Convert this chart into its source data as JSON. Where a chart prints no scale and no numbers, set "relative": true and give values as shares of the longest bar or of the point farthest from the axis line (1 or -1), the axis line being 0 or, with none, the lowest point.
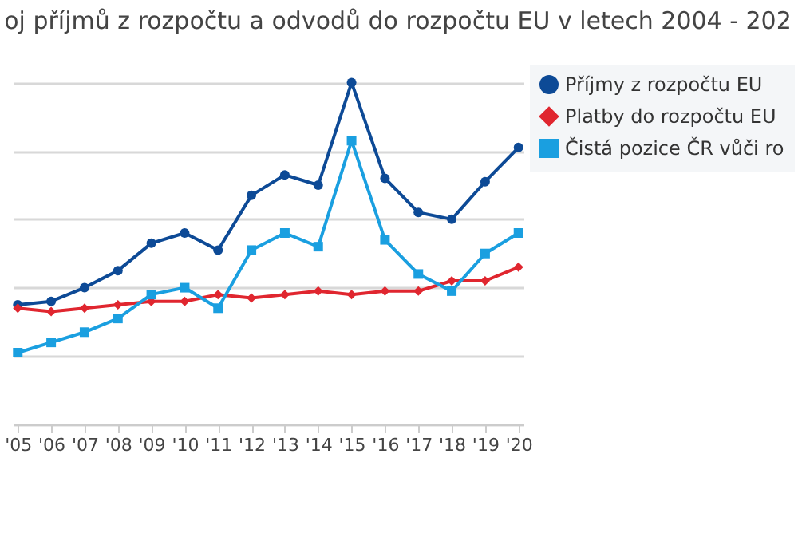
{
  "chart_data": {
    "type": "line",
    "title": "oj příjmů z rozpočtu a odvodů do rozpočtu EU v letech 2004 - 202",
    "relative": true,
    "grid": "y",
    "legend": "top right",
    "categories": [
      "'05",
      "'06",
      "'07",
      "'08",
      "'09",
      "'10",
      "'11",
      "'12",
      "'13",
      "'14",
      "'15",
      "'16",
      "'17",
      "'18",
      "'19",
      "'20"
    ],
    "series": [
      {
        "name": "Příjmy z rozpočtu EU",
        "color": "#0d4a96",
        "marker": "circle",
        "values": [
          0.35,
          0.36,
          0.4,
          0.45,
          0.53,
          0.56,
          0.51,
          0.67,
          0.73,
          0.7,
          1.0,
          0.72,
          0.62,
          0.6,
          0.71,
          0.81
        ]
      },
      {
        "name": "Platby do rozpočtu EU",
        "color": "#e0262f",
        "marker": "diamond",
        "values": [
          0.34,
          0.33,
          0.34,
          0.35,
          0.36,
          0.36,
          0.38,
          0.37,
          0.38,
          0.39,
          0.38,
          0.39,
          0.39,
          0.42,
          0.42,
          0.46
        ]
      },
      {
        "name": "Čistá pozice ČR vůči ro",
        "color": "#1a9fe0",
        "marker": "square",
        "values": [
          0.21,
          0.24,
          0.27,
          0.31,
          0.38,
          0.4,
          0.34,
          0.51,
          0.56,
          0.52,
          0.83,
          0.54,
          0.44,
          0.39,
          0.5,
          0.56
        ]
      }
    ]
  }
}
